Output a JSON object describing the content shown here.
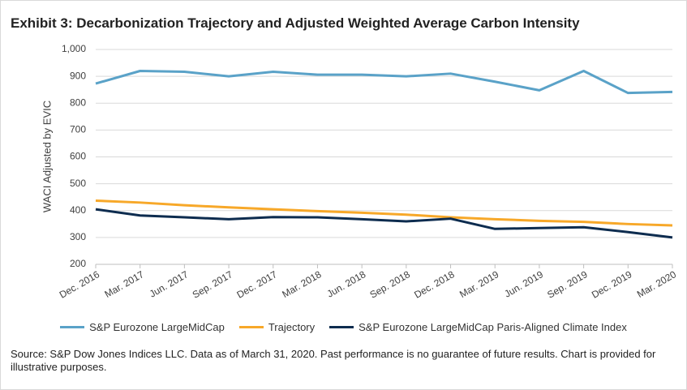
{
  "chart_data": {
    "type": "line",
    "title": "Exhibit 3: Decarbonization Trajectory and Adjusted Weighted Average Carbon Intensity",
    "y_label": "WACI Adjusted by EVIC",
    "categories": [
      "Dec. 2016",
      "Mar. 2017",
      "Jun. 2017",
      "Sep. 2017",
      "Dec. 2017",
      "Mar. 2018",
      "Jun. 2018",
      "Sep. 2018",
      "Dec. 2018",
      "Mar. 2019",
      "Jun. 2019",
      "Sep. 2019",
      "Dec. 2019",
      "Mar. 2020"
    ],
    "series": [
      {
        "name": "S&P Eurozone LargeMidCap",
        "color": "#5aa2c8",
        "values": [
          873,
          920,
          917,
          900,
          917,
          906,
          906,
          900,
          910,
          880,
          848,
          920,
          838,
          842
        ]
      },
      {
        "name": "Trajectory",
        "color": "#f7a829",
        "values": [
          437,
          430,
          420,
          412,
          405,
          398,
          392,
          385,
          375,
          368,
          362,
          358,
          350,
          345
        ]
      },
      {
        "name": "S&P Eurozone LargeMidCap Paris-Aligned Climate Index",
        "color": "#0d2c4f",
        "values": [
          405,
          382,
          375,
          368,
          376,
          375,
          368,
          360,
          370,
          332,
          335,
          338,
          320,
          300
        ]
      }
    ],
    "ylim": [
      200,
      1000
    ],
    "yticks": [
      200,
      300,
      400,
      500,
      600,
      700,
      800,
      900,
      {
        "value": 1000,
        "label": "1,000"
      }
    ],
    "grid": true,
    "source": "Source: S&P Dow Jones Indices LLC. Data as of March 31, 2020. Past performance is no guarantee of future results. Chart is provided for illustrative purposes."
  }
}
